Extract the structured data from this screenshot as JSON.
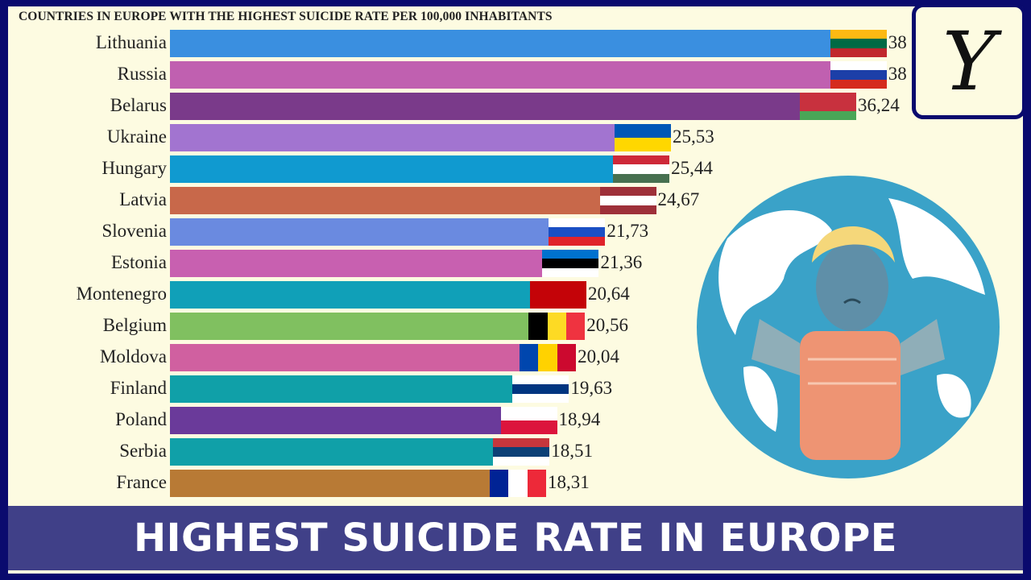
{
  "chart_data": {
    "type": "bar",
    "orientation": "horizontal",
    "title": "COUNTRIES IN EUROPE WITH THE HIGHEST SUICIDE RATE PER 100,000 INHABITANTS",
    "categories": [
      "Lithuania",
      "Russia",
      "Belarus",
      "Ukraine",
      "Hungary",
      "Latvia",
      "Slovenia",
      "Estonia",
      "Montenegro",
      "Belgium",
      "Moldova",
      "Finland",
      "Poland",
      "Serbia",
      "France"
    ],
    "values": [
      38,
      38,
      36.24,
      25.53,
      25.44,
      24.67,
      21.73,
      21.36,
      20.64,
      20.56,
      20.04,
      19.63,
      18.94,
      18.51,
      18.31
    ],
    "value_labels": [
      "38",
      "38",
      "36,24",
      "25,53",
      "25,44",
      "24,67",
      "21,73",
      "21,36",
      "20,64",
      "20,56",
      "20,04",
      "19,63",
      "18,94",
      "18,51",
      "18,31"
    ],
    "colors": [
      "#3a8fe0",
      "#c060b0",
      "#7a3a8a",
      "#a274d0",
      "#109ad0",
      "#c8684a",
      "#6a8ae0",
      "#c860b0",
      "#10a0b8",
      "#80c060",
      "#d060a0",
      "#10a0a8",
      "#6a3a9a",
      "#10a0a8",
      "#b87a35"
    ],
    "flags": [
      [
        "#fdb913",
        "#006a44",
        "#c1272d"
      ],
      [
        "#ffffff",
        "#1c3fa8",
        "#d52b1e"
      ],
      [
        "#c8313e",
        "#c8313e",
        "#4aa657"
      ],
      [
        "#0057b7",
        "#ffd700"
      ],
      [
        "#ce2939",
        "#ffffff",
        "#477050"
      ],
      [
        "#9e3039",
        "#ffffff",
        "#9e3039"
      ],
      [
        "#ffffff",
        "#1a4fc4",
        "#e0232a"
      ],
      [
        "#0072ce",
        "#000000",
        "#ffffff"
      ],
      [
        "#c40308",
        "#c40308",
        "#c40308"
      ],
      [
        "#000000",
        "#fdda24",
        "#ef3340"
      ],
      [
        "#0046ae",
        "#ffd200",
        "#cc092f"
      ],
      [
        "#ffffff",
        "#003580",
        "#ffffff"
      ],
      [
        "#ffffff",
        "#dc143c"
      ],
      [
        "#c6363c",
        "#0c4076",
        "#ffffff"
      ],
      [
        "#002395",
        "#ffffff",
        "#ed2939"
      ]
    ],
    "flag_vertical": [
      false,
      false,
      false,
      false,
      false,
      false,
      false,
      false,
      false,
      true,
      true,
      false,
      false,
      false,
      true
    ]
  },
  "banner": {
    "text": "HIGHEST SUICIDE RATE IN EUROPE"
  },
  "logo": {
    "letter": "Y"
  }
}
